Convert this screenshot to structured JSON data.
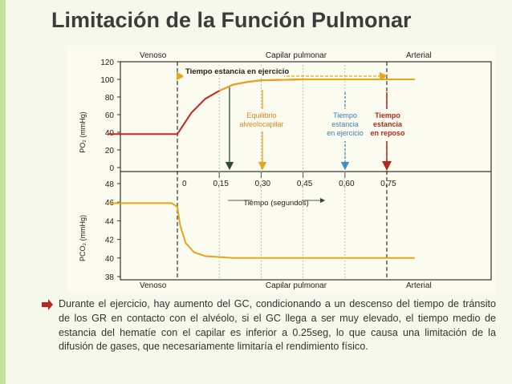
{
  "slide": {
    "title": "Limitación de la Función Pulmonar",
    "bullet": "Durante el ejercicio, hay aumento del GC, condicionando a un descenso del tiempo de tránsito de los GR en contacto con el alvéolo, si el GC llega a ser muy elevado, el tiempo medio de estancia del hematíe con el capilar es inferior a 0.25seg, lo que causa una limitación de la difusión de gases, que necesariamente limitaría el rendimiento físico."
  },
  "colors": {
    "accent_green": "#c5e3a0",
    "arrow_red": "#b9261c",
    "curve_red": "#c6281e",
    "curve_yellow": "#e6a617",
    "blue_arrow": "#3d8fc4",
    "dark_arrow": "#2a4a3a"
  },
  "diagram": {
    "top_labels": {
      "left": "Venoso",
      "middle": "Capilar pulmonar",
      "right": "Arterial"
    },
    "bottom_labels": {
      "left": "Venoso",
      "middle": "Capilar pulmonar",
      "right": "Arterial"
    },
    "po2_axis": {
      "label": "PO₂ (mmHg)",
      "ticks": [
        "0",
        "20",
        "40",
        "60",
        "80",
        "100",
        "120"
      ]
    },
    "pco2_axis": {
      "label": "PCO₂ (mmHg)",
      "ticks": [
        "38",
        "40",
        "42",
        "44",
        "46",
        "48"
      ]
    },
    "time_ticks": [
      "0",
      "0,15",
      "0,30",
      "0,45",
      "0,60",
      "0,75"
    ],
    "time_axis_label": "Tiempo (segundos)",
    "annotation_exercise": "Tiempo estancia en ejercicio",
    "annotation_equilibrium": [
      "Equilibrio",
      "alveolocapilar"
    ],
    "annotation_blue": [
      "Tiempo",
      "estancia",
      "en ejercicio"
    ],
    "annotation_red": [
      "Tiempo",
      "estancia",
      "en reposo"
    ]
  },
  "chart_data": [
    {
      "type": "line",
      "ylabel": "PO₂ (mmHg)",
      "ylim": [
        0,
        120
      ],
      "series": [
        {
          "points": [
            [
              -0.25,
              38
            ],
            [
              0,
              38
            ],
            [
              0.05,
              62
            ],
            [
              0.1,
              78
            ],
            [
              0.15,
              87
            ],
            [
              0.2,
              94
            ],
            [
              0.25,
              97
            ],
            [
              0.3,
              99
            ],
            [
              0.45,
              100
            ],
            [
              0.6,
              100
            ],
            [
              0.75,
              100
            ],
            [
              0.85,
              100
            ]
          ]
        }
      ]
    },
    {
      "type": "line",
      "ylabel": "PCO₂ (mmHg)",
      "ylim": [
        38,
        48
      ],
      "series": [
        {
          "points": [
            [
              -0.25,
              45.9
            ],
            [
              -0.02,
              45.9
            ],
            [
              0,
              45.5
            ],
            [
              0.01,
              43.5
            ],
            [
              0.03,
              41.6
            ],
            [
              0.06,
              40.6
            ],
            [
              0.1,
              40.2
            ],
            [
              0.2,
              40.0
            ],
            [
              0.45,
              40.0
            ],
            [
              0.75,
              40.0
            ],
            [
              0.85,
              40.0
            ]
          ]
        }
      ]
    }
  ]
}
